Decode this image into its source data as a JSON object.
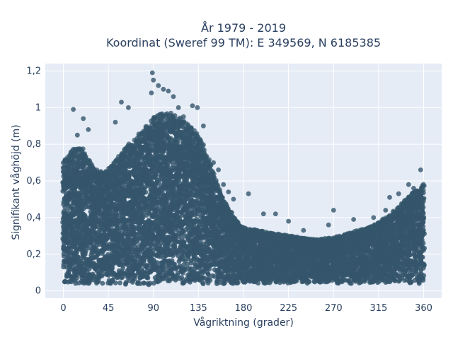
{
  "chart_data": {
    "type": "scatter",
    "title_lines": [
      "År 1979 - 2019",
      "Koordinat (Sweref 99 TM): E 349569, N 6185385"
    ],
    "xlabel": "Vågriktning (grader)",
    "ylabel": "Signifikant våghöjd (m)",
    "xlim": [
      -18,
      378
    ],
    "ylim": [
      -0.04,
      1.24
    ],
    "xticks": [
      0,
      45,
      90,
      135,
      180,
      225,
      270,
      315,
      360
    ],
    "xtick_labels": [
      "0",
      "45",
      "90",
      "135",
      "180",
      "225",
      "270",
      "315",
      "360"
    ],
    "yticks": [
      0,
      0.2,
      0.4,
      0.6,
      0.8,
      1.0,
      1.2
    ],
    "ytick_labels": [
      "0",
      "0,2",
      "0,4",
      "0,6",
      "0,8",
      "1",
      "1,2"
    ],
    "grid": true,
    "marker_color": "#34556b",
    "plot_background": "#e5ecf6",
    "upper_envelope": [
      {
        "x": 0,
        "y": 0.65
      },
      {
        "x": 10,
        "y": 0.72
      },
      {
        "x": 20,
        "y": 0.72
      },
      {
        "x": 30,
        "y": 0.62
      },
      {
        "x": 40,
        "y": 0.6
      },
      {
        "x": 50,
        "y": 0.64
      },
      {
        "x": 60,
        "y": 0.72
      },
      {
        "x": 70,
        "y": 0.76
      },
      {
        "x": 80,
        "y": 0.82
      },
      {
        "x": 90,
        "y": 0.88
      },
      {
        "x": 100,
        "y": 0.9
      },
      {
        "x": 110,
        "y": 0.9
      },
      {
        "x": 120,
        "y": 0.86
      },
      {
        "x": 130,
        "y": 0.82
      },
      {
        "x": 140,
        "y": 0.74
      },
      {
        "x": 150,
        "y": 0.6
      },
      {
        "x": 160,
        "y": 0.46
      },
      {
        "x": 170,
        "y": 0.38
      },
      {
        "x": 180,
        "y": 0.32
      },
      {
        "x": 200,
        "y": 0.3
      },
      {
        "x": 225,
        "y": 0.28
      },
      {
        "x": 250,
        "y": 0.26
      },
      {
        "x": 270,
        "y": 0.27
      },
      {
        "x": 290,
        "y": 0.3
      },
      {
        "x": 310,
        "y": 0.33
      },
      {
        "x": 325,
        "y": 0.38
      },
      {
        "x": 340,
        "y": 0.45
      },
      {
        "x": 350,
        "y": 0.5
      },
      {
        "x": 360,
        "y": 0.54
      }
    ],
    "lower_envelope": [
      {
        "x": 0,
        "y": 0.04
      },
      {
        "x": 90,
        "y": 0.03
      },
      {
        "x": 180,
        "y": 0.04
      },
      {
        "x": 270,
        "y": 0.04
      },
      {
        "x": 360,
        "y": 0.04
      }
    ],
    "outliers": [
      {
        "x": 10,
        "y": 0.99
      },
      {
        "x": 14,
        "y": 0.85
      },
      {
        "x": 20,
        "y": 0.94
      },
      {
        "x": 25,
        "y": 0.88
      },
      {
        "x": 52,
        "y": 0.92
      },
      {
        "x": 58,
        "y": 1.03
      },
      {
        "x": 65,
        "y": 1.0
      },
      {
        "x": 88,
        "y": 1.08
      },
      {
        "x": 89,
        "y": 1.19
      },
      {
        "x": 90,
        "y": 1.15
      },
      {
        "x": 95,
        "y": 1.12
      },
      {
        "x": 100,
        "y": 1.1
      },
      {
        "x": 105,
        "y": 1.09
      },
      {
        "x": 110,
        "y": 1.06
      },
      {
        "x": 115,
        "y": 1.0
      },
      {
        "x": 120,
        "y": 0.95
      },
      {
        "x": 129,
        "y": 1.01
      },
      {
        "x": 134,
        "y": 1.0
      },
      {
        "x": 140,
        "y": 0.9
      },
      {
        "x": 150,
        "y": 0.7
      },
      {
        "x": 155,
        "y": 0.66
      },
      {
        "x": 160,
        "y": 0.58
      },
      {
        "x": 165,
        "y": 0.54
      },
      {
        "x": 170,
        "y": 0.5
      },
      {
        "x": 185,
        "y": 0.53
      },
      {
        "x": 200,
        "y": 0.42
      },
      {
        "x": 212,
        "y": 0.42
      },
      {
        "x": 225,
        "y": 0.38
      },
      {
        "x": 240,
        "y": 0.33
      },
      {
        "x": 265,
        "y": 0.36
      },
      {
        "x": 270,
        "y": 0.44
      },
      {
        "x": 290,
        "y": 0.39
      },
      {
        "x": 310,
        "y": 0.4
      },
      {
        "x": 322,
        "y": 0.44
      },
      {
        "x": 326,
        "y": 0.51
      },
      {
        "x": 335,
        "y": 0.53
      },
      {
        "x": 345,
        "y": 0.58
      },
      {
        "x": 350,
        "y": 0.56
      },
      {
        "x": 357,
        "y": 0.66
      }
    ]
  }
}
